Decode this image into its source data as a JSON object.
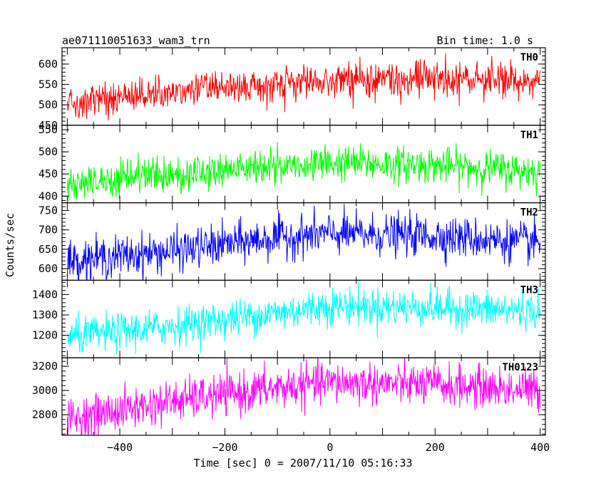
{
  "header": {
    "left_title": "ae071110051633_wam3_trn",
    "right_title": "Bin time: 1.0 s"
  },
  "chart_data": {
    "type": "line",
    "xlabel": "Time [sec] 0 = 2007/11/10 05:16:33",
    "ylabel": "Counts/sec",
    "xlim": [
      -510,
      410
    ],
    "x_ticks": [
      -400,
      -200,
      0,
      200,
      400
    ],
    "x_tick_labels": [
      "−400",
      "−200",
      "0",
      "200",
      "400"
    ],
    "x_bin": 1.0,
    "x_range": [
      -500,
      400
    ],
    "grid": false,
    "panels": [
      {
        "name": "TH0",
        "color": "#ff0000",
        "ylim": [
          450,
          640
        ],
        "y_ticks": [
          450,
          500,
          550,
          600
        ],
        "trend": {
          "x": [
            -500,
            -300,
            -100,
            0,
            200,
            400
          ],
          "y": [
            505,
            532,
            553,
            560,
            562,
            557
          ]
        },
        "noise_amp": 22
      },
      {
        "name": "TH1",
        "color": "#00ff00",
        "ylim": [
          385,
          560
        ],
        "y_ticks": [
          400,
          450,
          500,
          550
        ],
        "trend": {
          "x": [
            -500,
            -300,
            -100,
            0,
            200,
            400
          ],
          "y": [
            425,
            450,
            468,
            475,
            470,
            455
          ]
        },
        "noise_amp": 20
      },
      {
        "name": "TH2",
        "color": "#0000ff",
        "ylim": [
          570,
          770
        ],
        "y_ticks": [
          600,
          650,
          700,
          750
        ],
        "trend": {
          "x": [
            -500,
            -300,
            -100,
            0,
            200,
            400
          ],
          "y": [
            620,
            645,
            680,
            690,
            685,
            665
          ]
        },
        "noise_amp": 26
      },
      {
        "name": "TH3",
        "color": "#00ffff",
        "ylim": [
          1090,
          1470
        ],
        "y_ticks": [
          1200,
          1300,
          1400
        ],
        "trend": {
          "x": [
            -500,
            -300,
            -100,
            0,
            200,
            400
          ],
          "y": [
            1190,
            1245,
            1310,
            1345,
            1335,
            1320
          ]
        },
        "noise_amp": 45
      },
      {
        "name": "TH0123",
        "color": "#ff00ff",
        "ylim": [
          2630,
          3270
        ],
        "y_ticks": [
          2800,
          3000,
          3200
        ],
        "trend": {
          "x": [
            -500,
            -300,
            -100,
            0,
            200,
            400
          ],
          "y": [
            2760,
            2910,
            3020,
            3065,
            3045,
            3000
          ]
        },
        "noise_amp": 85
      }
    ]
  }
}
